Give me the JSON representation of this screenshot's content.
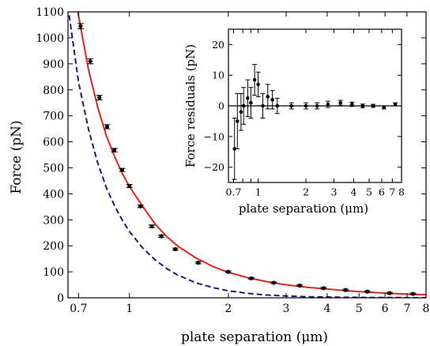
{
  "chart_data": [
    {
      "type": "scatter",
      "xlabel": "plate separation (μm)",
      "ylabel": "Force (pN)",
      "xscale": "log",
      "xlim": [
        0.65,
        8
      ],
      "ylim": [
        0,
        1100
      ],
      "x_ticks": [
        0.7,
        1,
        2,
        3,
        4,
        5,
        6,
        7,
        8
      ],
      "x_tick_labels": [
        "0.7",
        "1",
        "2",
        "3",
        "4",
        "5",
        "6",
        "7",
        "8"
      ],
      "y_ticks": [
        0,
        100,
        200,
        300,
        400,
        500,
        600,
        700,
        800,
        900,
        1000,
        1100
      ],
      "y_tick_labels": [
        "0",
        "100",
        "200",
        "300",
        "400",
        "500",
        "600",
        "700",
        "800",
        "900",
        "1000",
        "1100"
      ],
      "series": [
        {
          "kind": "points-with-error",
          "color": "#000000",
          "x": [
            0.71,
            0.76,
            0.81,
            0.855,
            0.9,
            0.95,
            1.0,
            1.08,
            1.17,
            1.25,
            1.38,
            1.62,
            2.0,
            2.35,
            2.75,
            3.3,
            3.9,
            4.55,
            5.3,
            6.2,
            7.3
          ],
          "y": [
            1045,
            910,
            770,
            658,
            568,
            492,
            430,
            352,
            275,
            237,
            187,
            135,
            100,
            75,
            58,
            47,
            37,
            30,
            24,
            18,
            15
          ],
          "err": [
            10,
            10,
            9,
            8,
            7,
            6,
            6,
            5,
            5,
            5,
            4,
            4,
            3,
            3,
            3,
            3,
            3,
            3,
            3,
            3,
            3
          ]
        },
        {
          "kind": "line",
          "style": "solid",
          "color": "#e8211c",
          "x": [
            0.65,
            0.7,
            0.75,
            0.8,
            0.85,
            0.9,
            0.95,
            1.0,
            1.1,
            1.2,
            1.3,
            1.4,
            1.6,
            1.8,
            2.0,
            2.3,
            2.6,
            3.0,
            3.5,
            4.0,
            4.5,
            5.0,
            5.5,
            6.0,
            6.5,
            7.0,
            7.5,
            8.0
          ],
          "y": [
            1430,
            1085,
            880,
            735,
            625,
            545,
            480,
            428,
            350,
            282,
            235,
            200,
            152,
            120,
            98,
            77,
            63,
            50,
            40,
            34,
            28,
            24,
            21,
            18,
            16,
            14,
            13,
            12
          ]
        },
        {
          "kind": "line",
          "style": "dashed",
          "color": "#1a1a7a",
          "x": [
            0.65,
            0.7,
            0.75,
            0.8,
            0.85,
            0.9,
            0.95,
            1.0,
            1.1,
            1.2,
            1.3,
            1.4,
            1.6,
            1.8,
            2.0,
            2.3,
            2.6,
            3.0,
            3.5,
            4.0,
            4.5,
            5.0,
            5.5,
            6.0,
            7.0,
            8.0
          ],
          "y": [
            1120,
            830,
            650,
            520,
            425,
            355,
            300,
            255,
            190,
            145,
            112,
            88,
            57,
            39,
            27,
            17,
            11,
            7,
            4,
            3,
            2,
            1.5,
            1,
            1,
            0.5,
            0.3
          ]
        }
      ]
    },
    {
      "type": "scatter",
      "xlabel": "plate separation (μm)",
      "ylabel": "Force residuals (pN)",
      "xscale": "log",
      "xlim": [
        0.65,
        8
      ],
      "ylim": [
        -25,
        25
      ],
      "x_ticks": [
        0.7,
        0.8,
        0.9,
        1,
        2,
        3,
        4,
        5,
        6,
        7,
        8
      ],
      "x_tick_labels": [
        "0.7",
        "",
        "",
        "1",
        "2",
        "3",
        "4",
        "5",
        "6",
        "7",
        "8"
      ],
      "y_ticks": [
        -20,
        -10,
        0,
        10,
        20
      ],
      "y_tick_labels": [
        "−20",
        "−10",
        "0",
        "10",
        "20"
      ],
      "series": [
        {
          "kind": "points-with-error",
          "color": "#000000",
          "x": [
            0.71,
            0.74,
            0.78,
            0.81,
            0.86,
            0.9,
            0.95,
            1.0,
            1.07,
            1.15,
            1.23,
            1.32,
            1.62,
            2.0,
            2.35,
            2.75,
            3.3,
            3.9,
            4.55,
            5.3,
            6.2,
            7.3
          ],
          "y": [
            -14,
            -5,
            -2,
            0,
            2.5,
            1,
            8.5,
            7,
            0,
            3,
            2,
            0,
            0,
            0,
            0,
            0.5,
            1,
            0.5,
            0,
            0,
            -0.5,
            0.5
          ],
          "err": [
            10,
            9,
            6,
            6,
            6,
            5,
            5,
            4,
            4,
            4,
            3,
            2.5,
            1,
            1,
            1,
            1,
            0.8,
            0.7,
            0.6,
            0.5,
            0.5,
            0.5
          ]
        },
        {
          "kind": "hline",
          "color": "#000000",
          "y": 0
        }
      ]
    }
  ]
}
